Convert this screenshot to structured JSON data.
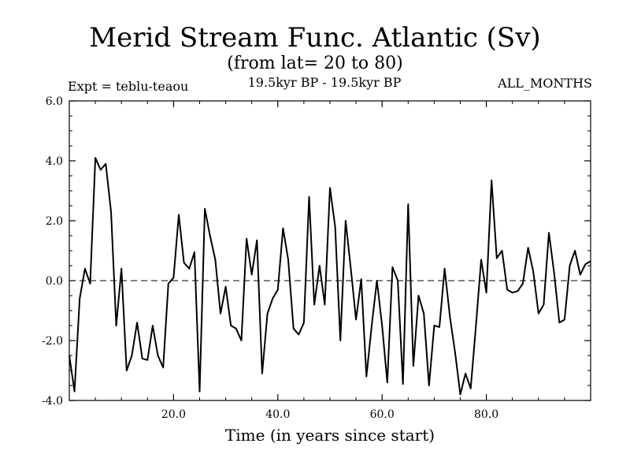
{
  "chart_data": {
    "type": "line",
    "title": "Merid Stream Func. Atlantic (Sv)",
    "subtitle": "(from lat= 20 to 80)",
    "experiment": "Expt = teblu-teaou",
    "period": "19.5kyr BP - 19.5kyr BP",
    "months": "ALL_MONTHS",
    "xlabel": "Time (in years since start)",
    "ylabel": "",
    "xlim": [
      0,
      100
    ],
    "ylim": [
      -4.0,
      6.0
    ],
    "xticks": [
      20.0,
      40.0,
      60.0,
      80.0
    ],
    "xtick_labels": [
      "20.0",
      "40.0",
      "60.0",
      "80.0"
    ],
    "yticks": [
      -4.0,
      -2.0,
      0.0,
      2.0,
      4.0,
      6.0
    ],
    "ytick_labels": [
      "-4.0",
      "-2.0",
      "0.0",
      "2.0",
      "4.0",
      "6.0"
    ],
    "reference_line": 0.0,
    "series": [
      {
        "name": "Meridional stream function",
        "x": [
          0,
          1,
          2,
          3,
          4,
          5,
          6,
          7,
          8,
          9,
          10,
          11,
          12,
          13,
          14,
          15,
          16,
          17,
          18,
          19,
          20,
          21,
          22,
          23,
          24,
          25,
          26,
          27,
          28,
          29,
          30,
          31,
          32,
          33,
          34,
          35,
          36,
          37,
          38,
          39,
          40,
          41,
          42,
          43,
          44,
          45,
          46,
          47,
          48,
          49,
          50,
          51,
          52,
          53,
          54,
          55,
          56,
          57,
          58,
          59,
          60,
          61,
          62,
          63,
          64,
          65,
          66,
          67,
          68,
          69,
          70,
          71,
          72,
          73,
          74,
          75,
          76,
          77,
          78,
          79,
          80,
          81,
          82,
          83,
          84,
          85,
          86,
          87,
          88,
          89,
          90,
          91,
          92,
          93,
          94,
          95,
          96,
          97,
          98,
          99,
          100
        ],
        "values": [
          -2.5,
          -3.7,
          -0.6,
          0.4,
          -0.1,
          4.1,
          3.7,
          3.9,
          2.3,
          -1.5,
          0.4,
          -3.0,
          -2.5,
          -1.4,
          -2.6,
          -2.65,
          -1.5,
          -2.5,
          -2.9,
          -0.1,
          0.1,
          2.2,
          0.6,
          0.4,
          0.95,
          -3.7,
          2.4,
          1.5,
          0.7,
          -1.1,
          -0.2,
          -1.5,
          -1.6,
          -2.0,
          1.4,
          0.2,
          1.35,
          -3.1,
          -1.1,
          -0.6,
          -0.3,
          1.75,
          0.7,
          -1.6,
          -1.8,
          -1.4,
          2.8,
          -0.8,
          0.5,
          -0.8,
          3.1,
          1.8,
          -2.0,
          2.0,
          0.4,
          -1.3,
          0.05,
          -3.2,
          -1.5,
          0.0,
          -1.5,
          -3.4,
          0.45,
          0.0,
          -3.45,
          2.55,
          -2.85,
          -0.5,
          -1.1,
          -3.5,
          -1.5,
          -1.55,
          0.4,
          -1.2,
          -2.4,
          -3.8,
          -3.1,
          -3.6,
          -1.5,
          0.7,
          -0.4,
          3.35,
          0.75,
          1.0,
          -0.3,
          -0.4,
          -0.35,
          -0.1,
          1.1,
          0.3,
          -1.1,
          -0.8,
          1.6,
          0.25,
          -1.4,
          -1.3,
          0.5,
          1.0,
          0.2,
          0.55,
          0.65
        ]
      }
    ]
  }
}
